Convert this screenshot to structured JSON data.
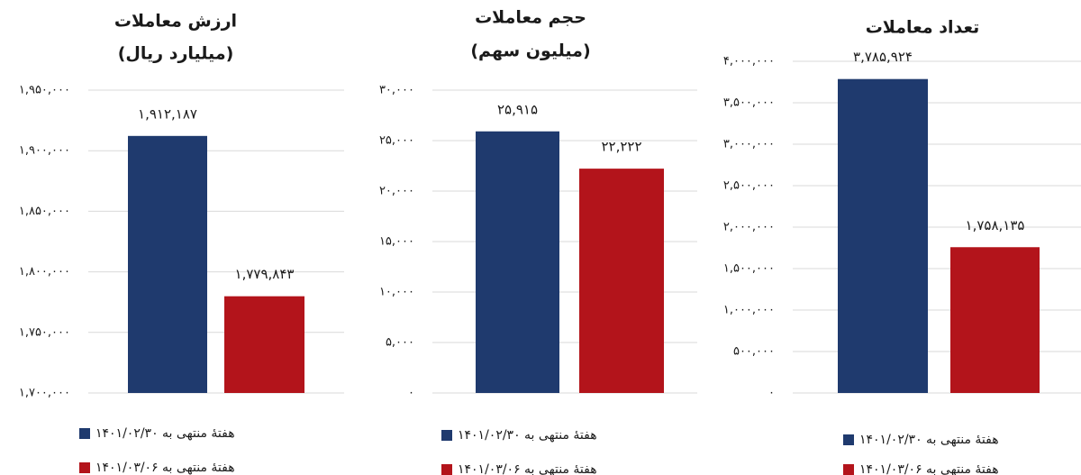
{
  "colors": {
    "series1": "#1F3A6E",
    "series2": "#B3141B",
    "grid": "#D9D9D9",
    "text": "#1A1A1A"
  },
  "chart_data": [
    {
      "type": "bar",
      "title": "ارزش معاملات",
      "subtitle": "(میلیارد ریال)",
      "categories": [
        ""
      ],
      "ylim": [
        1700000,
        1950000
      ],
      "yticks": [
        1700000,
        1750000,
        1800000,
        1850000,
        1900000,
        1950000
      ],
      "ytick_labels": [
        "۱,۷۰۰,۰۰۰",
        "۱,۷۵۰,۰۰۰",
        "۱,۸۰۰,۰۰۰",
        "۱,۸۵۰,۰۰۰",
        "۱,۹۰۰,۰۰۰",
        "۱,۹۵۰,۰۰۰"
      ],
      "series": [
        {
          "name": "هفتۀ منتهی به ۱۴۰۱/۰۲/۳۰",
          "values": [
            1912187
          ],
          "label": "۱,۹۱۲,۱۸۷"
        },
        {
          "name": "هفتۀ منتهی به ۱۴۰۱/۰۳/۰۶",
          "values": [
            1779843
          ],
          "label": "۱,۷۷۹,۸۴۳"
        }
      ],
      "grid": true,
      "legend": "bottom"
    },
    {
      "type": "bar",
      "title": "حجم معاملات",
      "subtitle": "(میلیون سهم)",
      "categories": [
        ""
      ],
      "ylim": [
        0,
        30000
      ],
      "yticks": [
        0,
        5000,
        10000,
        15000,
        20000,
        25000,
        30000
      ],
      "ytick_labels": [
        "۰",
        "۵,۰۰۰",
        "۱۰,۰۰۰",
        "۱۵,۰۰۰",
        "۲۰,۰۰۰",
        "۲۵,۰۰۰",
        "۳۰,۰۰۰"
      ],
      "series": [
        {
          "name": "هفتۀ منتهی به ۱۴۰۱/۰۲/۳۰",
          "values": [
            25915
          ],
          "label": "۲۵,۹۱۵"
        },
        {
          "name": "هفتۀ منتهی به ۱۴۰۱/۰۳/۰۶",
          "values": [
            22222
          ],
          "label": "۲۲,۲۲۲"
        }
      ],
      "grid": true,
      "legend": "bottom"
    },
    {
      "type": "bar",
      "title": "تعداد معاملات",
      "subtitle": "",
      "categories": [
        ""
      ],
      "ylim": [
        0,
        4000000
      ],
      "yticks": [
        0,
        500000,
        1000000,
        1500000,
        2000000,
        2500000,
        3000000,
        3500000,
        4000000
      ],
      "ytick_labels": [
        "۰",
        "۵۰۰,۰۰۰",
        "۱,۰۰۰,۰۰۰",
        "۱,۵۰۰,۰۰۰",
        "۲,۰۰۰,۰۰۰",
        "۲,۵۰۰,۰۰۰",
        "۳,۰۰۰,۰۰۰",
        "۳,۵۰۰,۰۰۰",
        "۴,۰۰۰,۰۰۰"
      ],
      "series": [
        {
          "name": "هفتۀ منتهی به ۱۴۰۱/۰۲/۳۰",
          "values": [
            3785924
          ],
          "label": "۳,۷۸۵,۹۲۴"
        },
        {
          "name": "هفتۀ منتهی به ۱۴۰۱/۰۳/۰۶",
          "values": [
            1758135
          ],
          "label": "۱,۷۵۸,۱۳۵"
        }
      ],
      "grid": true,
      "legend": "bottom"
    }
  ]
}
